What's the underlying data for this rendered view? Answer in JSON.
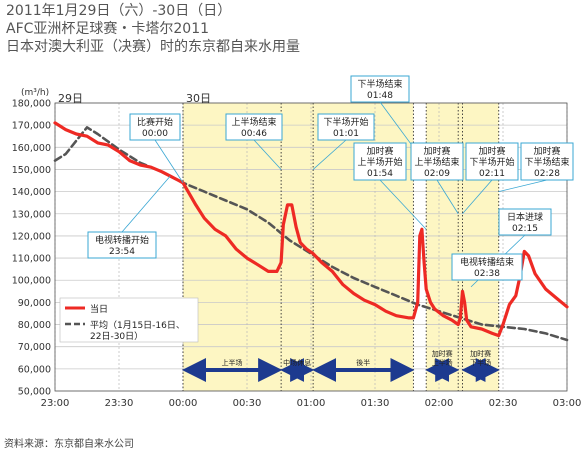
{
  "title_lines": [
    "2011年1月29日（六）-30日（日）",
    "AFC亚洲杯足球赛・卡塔尔2011",
    "日本对澳大利亚（决赛）时的东京都自来水用量"
  ],
  "source": "资料来源：东京都自来水公司",
  "colors": {
    "today": "#ee2a24",
    "average": "#555555",
    "band": "#fdf6c3",
    "arrow": "#1d3a8f",
    "callout_border": "#3aa7d3"
  },
  "chart_data": {
    "type": "line",
    "ylabel": "(m³/h)",
    "ylim": [
      50000,
      180000
    ],
    "yticks": [
      180000,
      170000,
      160000,
      150000,
      140000,
      130000,
      120000,
      110000,
      100000,
      90000,
      80000,
      70000,
      60000,
      50000
    ],
    "ytick_labels": [
      "180,000",
      "170,000",
      "160,000",
      "150,000",
      "140,000",
      "130,000",
      "120,000",
      "110,000",
      "100,000",
      "90,000",
      "80,000",
      "70,000",
      "60,000",
      "50,000"
    ],
    "xlim": [
      "23:00",
      "03:00"
    ],
    "xticks": [
      "23:00",
      "23:30",
      "00:00",
      "00:30",
      "01:00",
      "01:30",
      "02:00",
      "02:30",
      "03:00"
    ],
    "day_labels": [
      {
        "label": "29日",
        "at": "23:00"
      },
      {
        "label": "30日",
        "at": "00:00"
      }
    ],
    "series": [
      {
        "name": "当日",
        "points": [
          [
            "23:00",
            171000
          ],
          [
            "23:05",
            168000
          ],
          [
            "23:10",
            166000
          ],
          [
            "23:15",
            165000
          ],
          [
            "23:20",
            162000
          ],
          [
            "23:25",
            161000
          ],
          [
            "23:30",
            158000
          ],
          [
            "23:35",
            154000
          ],
          [
            "23:40",
            152000
          ],
          [
            "23:45",
            151000
          ],
          [
            "23:50",
            149000
          ],
          [
            "23:54",
            147000
          ],
          [
            "23:58",
            145000
          ],
          [
            "00:00",
            144000
          ],
          [
            "00:03",
            139000
          ],
          [
            "00:06",
            134000
          ],
          [
            "00:10",
            128000
          ],
          [
            "00:15",
            123000
          ],
          [
            "00:20",
            120000
          ],
          [
            "00:25",
            114000
          ],
          [
            "00:30",
            110000
          ],
          [
            "00:35",
            107000
          ],
          [
            "00:40",
            104000
          ],
          [
            "00:44",
            104000
          ],
          [
            "00:46",
            108000
          ],
          [
            "00:47",
            125000
          ],
          [
            "00:49",
            134000
          ],
          [
            "00:51",
            134000
          ],
          [
            "00:53",
            124000
          ],
          [
            "00:55",
            117000
          ],
          [
            "00:58",
            114000
          ],
          [
            "01:01",
            112000
          ],
          [
            "01:05",
            108000
          ],
          [
            "01:10",
            104000
          ],
          [
            "01:15",
            98000
          ],
          [
            "01:20",
            94000
          ],
          [
            "01:25",
            91000
          ],
          [
            "01:30",
            89000
          ],
          [
            "01:35",
            86000
          ],
          [
            "01:40",
            84000
          ],
          [
            "01:46",
            83000
          ],
          [
            "01:48",
            83000
          ],
          [
            "01:50",
            90000
          ],
          [
            "01:51",
            120000
          ],
          [
            "01:52",
            123000
          ],
          [
            "01:53",
            108000
          ],
          [
            "01:54",
            96000
          ],
          [
            "01:56",
            90000
          ],
          [
            "01:58",
            87000
          ],
          [
            "02:02",
            84000
          ],
          [
            "02:06",
            82000
          ],
          [
            "02:09",
            80000
          ],
          [
            "02:10",
            83000
          ],
          [
            "02:11",
            95000
          ],
          [
            "02:12",
            90000
          ],
          [
            "02:13",
            82000
          ],
          [
            "02:15",
            79000
          ],
          [
            "02:20",
            78000
          ],
          [
            "02:25",
            76000
          ],
          [
            "02:28",
            75000
          ],
          [
            "02:30",
            80000
          ],
          [
            "02:33",
            89000
          ],
          [
            "02:36",
            93000
          ],
          [
            "02:38",
            102000
          ],
          [
            "02:40",
            113000
          ],
          [
            "02:42",
            111000
          ],
          [
            "02:45",
            103000
          ],
          [
            "02:50",
            96000
          ],
          [
            "02:55",
            92000
          ],
          [
            "03:00",
            88000
          ]
        ]
      },
      {
        "name": "平均（1月15日-16日、22日-30日）",
        "points": [
          [
            "23:00",
            154000
          ],
          [
            "23:05",
            157000
          ],
          [
            "23:10",
            163000
          ],
          [
            "23:15",
            169000
          ],
          [
            "23:20",
            166000
          ],
          [
            "23:30",
            159000
          ],
          [
            "23:40",
            153000
          ],
          [
            "23:50",
            149000
          ],
          [
            "00:00",
            144000
          ],
          [
            "00:10",
            140000
          ],
          [
            "00:20",
            136000
          ],
          [
            "00:30",
            132000
          ],
          [
            "00:40",
            126000
          ],
          [
            "00:50",
            118000
          ],
          [
            "01:00",
            112000
          ],
          [
            "01:10",
            106000
          ],
          [
            "01:20",
            101000
          ],
          [
            "01:30",
            97000
          ],
          [
            "01:40",
            93000
          ],
          [
            "01:50",
            89000
          ],
          [
            "02:00",
            86000
          ],
          [
            "02:10",
            83000
          ],
          [
            "02:20",
            80000
          ],
          [
            "02:30",
            79000
          ],
          [
            "02:40",
            78000
          ],
          [
            "02:50",
            76000
          ],
          [
            "03:00",
            73000
          ]
        ]
      }
    ],
    "bands": [
      {
        "from": "00:00",
        "to": "01:48"
      },
      {
        "from": "01:54",
        "to": "02:28"
      }
    ],
    "event_lines": [
      "00:00",
      "00:46",
      "01:01",
      "01:48",
      "01:54",
      "02:09",
      "02:11",
      "02:28"
    ],
    "period_arrows": [
      {
        "label": "上半场",
        "from": "00:00",
        "to": "00:46"
      },
      {
        "label": "中场休息",
        "from": "00:46",
        "to": "01:01"
      },
      {
        "label": "後半",
        "from": "01:01",
        "to": "01:48"
      },
      {
        "label": "加时赛 上半场",
        "from": "01:54",
        "to": "02:09"
      },
      {
        "label": "加时赛 下半场",
        "from": "02:11",
        "to": "02:28"
      }
    ],
    "annotations": [
      {
        "text": [
          "比赛开始",
          "00:00"
        ],
        "at": "00:00",
        "value": 144000
      },
      {
        "text": [
          "上半场结束",
          "00:46"
        ],
        "at": "00:46",
        "value": 150000
      },
      {
        "text": [
          "下半场开始",
          "01:01"
        ],
        "at": "01:01",
        "value": 150000
      },
      {
        "text": [
          "下半场结束",
          "01:48"
        ],
        "at": "01:48",
        "value": 160000
      },
      {
        "text": [
          "加时赛",
          "上半场开始",
          "01:54"
        ],
        "at": "01:54",
        "value": 123000
      },
      {
        "text": [
          "加时赛",
          "上半场结束",
          "02:09"
        ],
        "at": "02:09",
        "value": 130000
      },
      {
        "text": [
          "加时赛",
          "下半场开始",
          "02:11"
        ],
        "at": "02:11",
        "value": 130000
      },
      {
        "text": [
          "加时赛",
          "下半场结束",
          "02:28"
        ],
        "at": "02:28",
        "value": 140000
      },
      {
        "text": [
          "日本进球",
          "02:15"
        ],
        "at": "02:15",
        "value": 97000
      },
      {
        "text": [
          "电视转播结束",
          "02:38"
        ],
        "at": "02:38",
        "value": 105000
      },
      {
        "text": [
          "电视转播开始",
          "23:54"
        ],
        "at": "23:54",
        "value": 147000
      }
    ]
  }
}
